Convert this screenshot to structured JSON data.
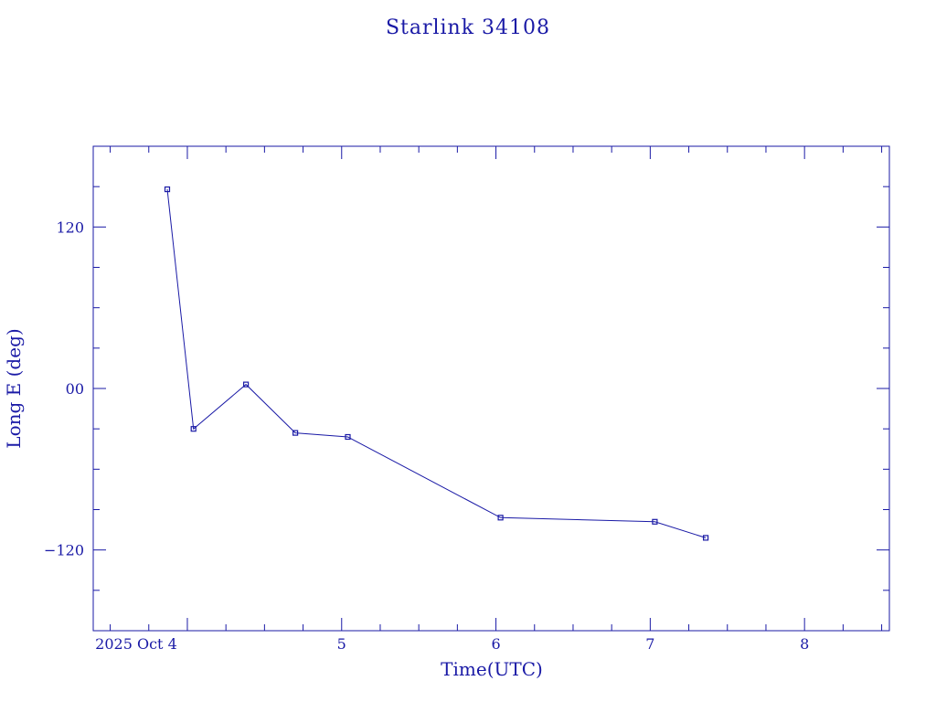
{
  "chart_data": {
    "type": "line",
    "title": "Starlink 34108",
    "xlabel": "Time(UTC)",
    "ylabel": "Long E (deg)",
    "x_axis": {
      "unit": "days since 2025 Oct 4 00:00 UTC",
      "range": [
        3.39,
        8.55
      ],
      "major_ticks": [
        4,
        5,
        6,
        7,
        8
      ],
      "minor_step": 0.25,
      "tick_labels": [
        "2025 Oct  4",
        "5",
        "6",
        "7",
        "8"
      ]
    },
    "y_axis": {
      "range": [
        -180,
        180
      ],
      "major_ticks": [
        -120,
        0,
        120
      ],
      "minor_step": 30,
      "tick_labels": [
        "−120",
        "00",
        "120"
      ]
    },
    "grid": false,
    "series": [
      {
        "x": [
          3.87,
          4.04,
          4.38,
          4.7,
          5.04,
          6.03,
          7.03,
          7.36
        ],
        "y": [
          148,
          -30,
          3,
          -33,
          -36,
          -96,
          -99,
          -111
        ]
      }
    ]
  }
}
